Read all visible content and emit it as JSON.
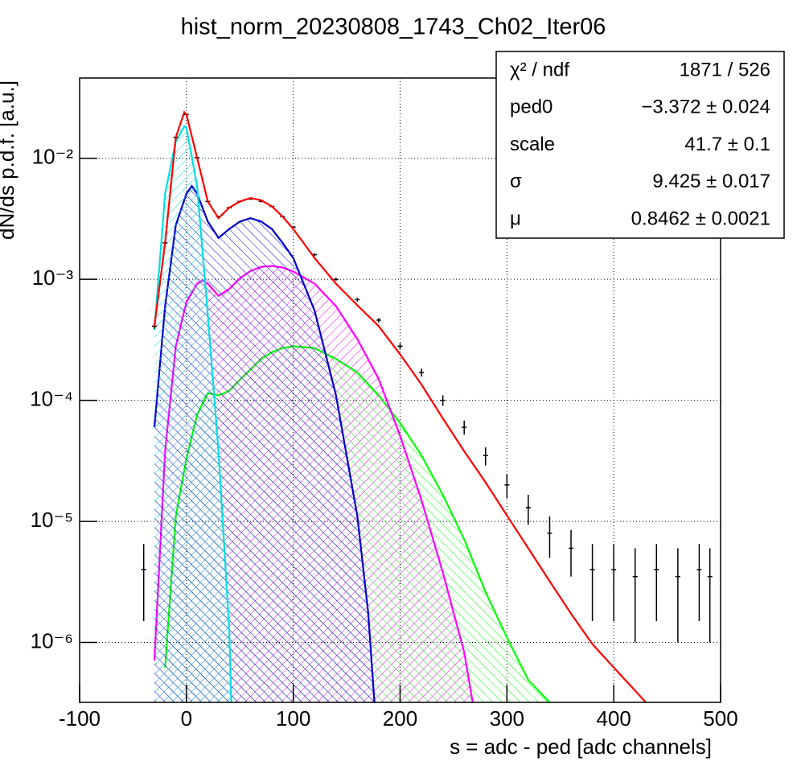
{
  "chart_data": {
    "type": "line",
    "title": "hist_norm_20230808_1743_Ch02_Iter06",
    "x_label": "s = adc - ped [adc channels]",
    "y_label": "dN/ds p.d.f. [a.u.]",
    "xlim": [
      -100,
      500
    ],
    "xticks": [
      -100,
      0,
      100,
      200,
      300,
      400,
      500
    ],
    "ylim": [
      3.2e-07,
      0.046
    ],
    "ylog": true,
    "grid": true,
    "yticks": [
      {
        "value": 1e-06,
        "label": "10⁻⁶"
      },
      {
        "value": 1e-05,
        "label": "10⁻⁵"
      },
      {
        "value": 0.0001,
        "label": "10⁻⁴"
      },
      {
        "value": 0.001,
        "label": "10⁻³"
      },
      {
        "value": 0.01,
        "label": "10⁻²"
      }
    ],
    "stats": [
      {
        "label": "χ² / ndf",
        "value": "1871 / 526"
      },
      {
        "label": "ped0",
        "value": "−3.372 ± 0.024"
      },
      {
        "label": "scale",
        "value": "41.7 ± 0.1"
      },
      {
        "label": "σ",
        "value": "9.425 ± 0.017"
      },
      {
        "label": "μ",
        "value": "0.8462 ± 0.0021"
      }
    ],
    "series": [
      {
        "color": "#00ff00",
        "fill": "hatch",
        "x": [
          -20,
          -10,
          0,
          10,
          20,
          30,
          40,
          50,
          60,
          70,
          80,
          90,
          100,
          120,
          140,
          160,
          180,
          200,
          220,
          240,
          260,
          280,
          300,
          320,
          340
        ],
        "values": [
          6.2e-07,
          1.1e-05,
          3.3e-05,
          7.6e-05,
          0.000115,
          0.00011,
          0.00012,
          0.000148,
          0.00018,
          0.00022,
          0.00025,
          0.00027,
          0.00028,
          0.00027,
          0.00022,
          0.00017,
          0.00011,
          6.5e-05,
          3.5e-05,
          1.66e-05,
          7.1e-06,
          2.6e-06,
          1.1e-06,
          4.9e-07,
          3.2e-07
        ]
      },
      {
        "color": "#ff00ff",
        "fill": "hatch",
        "x": [
          -30,
          -20,
          -10,
          0,
          10,
          15,
          20,
          30,
          40,
          50,
          60,
          70,
          80,
          90,
          100,
          120,
          140,
          160,
          180,
          200,
          220,
          240,
          260,
          268
        ],
        "values": [
          7.1e-07,
          3.8e-05,
          0.00028,
          0.00065,
          0.00092,
          0.00098,
          0.00092,
          0.00073,
          0.00083,
          0.00102,
          0.00117,
          0.00127,
          0.00129,
          0.00125,
          0.00116,
          0.00092,
          0.0006,
          0.00032,
          0.00015,
          5.1e-05,
          1.5e-05,
          3.8e-06,
          8.3e-07,
          3.2e-07
        ]
      },
      {
        "color": "#0000cc",
        "fill": "hatch",
        "x": [
          -30,
          -20,
          -10,
          0,
          5,
          10,
          20,
          30,
          40,
          50,
          60,
          70,
          80,
          90,
          100,
          120,
          140,
          160,
          170,
          176
        ],
        "values": [
          6e-05,
          0.0006,
          0.0028,
          0.0051,
          0.0059,
          0.0051,
          0.003,
          0.0022,
          0.0026,
          0.003,
          0.0032,
          0.003,
          0.0026,
          0.002,
          0.0015,
          0.00055,
          0.00011,
          1.1e-05,
          1.8e-06,
          3.2e-07
        ]
      },
      {
        "color": "#00e0e0",
        "fill": "hatch",
        "x": [
          -30,
          -20,
          -10,
          -2,
          0,
          10,
          20,
          30,
          40,
          42
        ],
        "values": [
          0.00038,
          0.0051,
          0.0138,
          0.0184,
          0.018,
          0.0059,
          0.00051,
          3.8e-05,
          1.3e-06,
          3.2e-07
        ]
      },
      {
        "color": "#000000",
        "style": "errorbar",
        "x": [
          -40,
          -30,
          -20,
          -10,
          0,
          10,
          20,
          30,
          40,
          50,
          60,
          70,
          80,
          90,
          100,
          120,
          140,
          160,
          180,
          200,
          220,
          240,
          260,
          280,
          300,
          320,
          340,
          360,
          380,
          400,
          420,
          440,
          460,
          480,
          490
        ],
        "values": [
          4e-06,
          0.00041,
          0.002,
          0.0149,
          0.023,
          0.0101,
          0.0044,
          0.0033,
          0.0039,
          0.0044,
          0.0046,
          0.0044,
          0.004,
          0.0033,
          0.0027,
          0.0016,
          0.001,
          0.00068,
          0.00046,
          0.00028,
          0.00017,
          0.0001,
          6e-05,
          3.5e-05,
          2e-05,
          1.3e-05,
          8e-06,
          6e-06,
          4e-06,
          4e-06,
          3.5e-06,
          4e-06,
          3.5e-06,
          4e-06,
          3.5e-06
        ],
        "errors": [
          2.5e-06,
          2e-05,
          5e-05,
          0.00012,
          0.00015,
          0.0001,
          6e-05,
          5e-05,
          6e-05,
          6e-05,
          7e-05,
          6e-05,
          6e-05,
          5e-05,
          5e-05,
          4e-05,
          3e-05,
          2.6e-05,
          2e-05,
          1.7e-05,
          1.3e-05,
          1e-05,
          8e-06,
          6e-06,
          4.5e-06,
          3.6e-06,
          3e-06,
          2.5e-06,
          2.5e-06,
          2.5e-06,
          2.5e-06,
          2.5e-06,
          2.5e-06,
          2.5e-06,
          2.5e-06
        ]
      },
      {
        "color": "#ff0000",
        "x": [
          -30,
          -20,
          -10,
          -2,
          0,
          10,
          20,
          30,
          40,
          50,
          60,
          70,
          80,
          90,
          100,
          120,
          140,
          160,
          180,
          200,
          220,
          240,
          260,
          280,
          300,
          320,
          340,
          360,
          380,
          400,
          420,
          430
        ],
        "values": [
          0.00041,
          0.002,
          0.0149,
          0.024,
          0.023,
          0.0101,
          0.0044,
          0.0032,
          0.0039,
          0.0044,
          0.0047,
          0.0045,
          0.004,
          0.0033,
          0.0026,
          0.0015,
          0.00092,
          0.00061,
          0.00041,
          0.00024,
          0.000135,
          7.1e-05,
          3.8e-05,
          2.1e-05,
          1.12e-05,
          6e-06,
          3.2e-06,
          1.73e-06,
          9.7e-07,
          6.2e-07,
          4e-07,
          3.2e-07
        ]
      }
    ]
  }
}
